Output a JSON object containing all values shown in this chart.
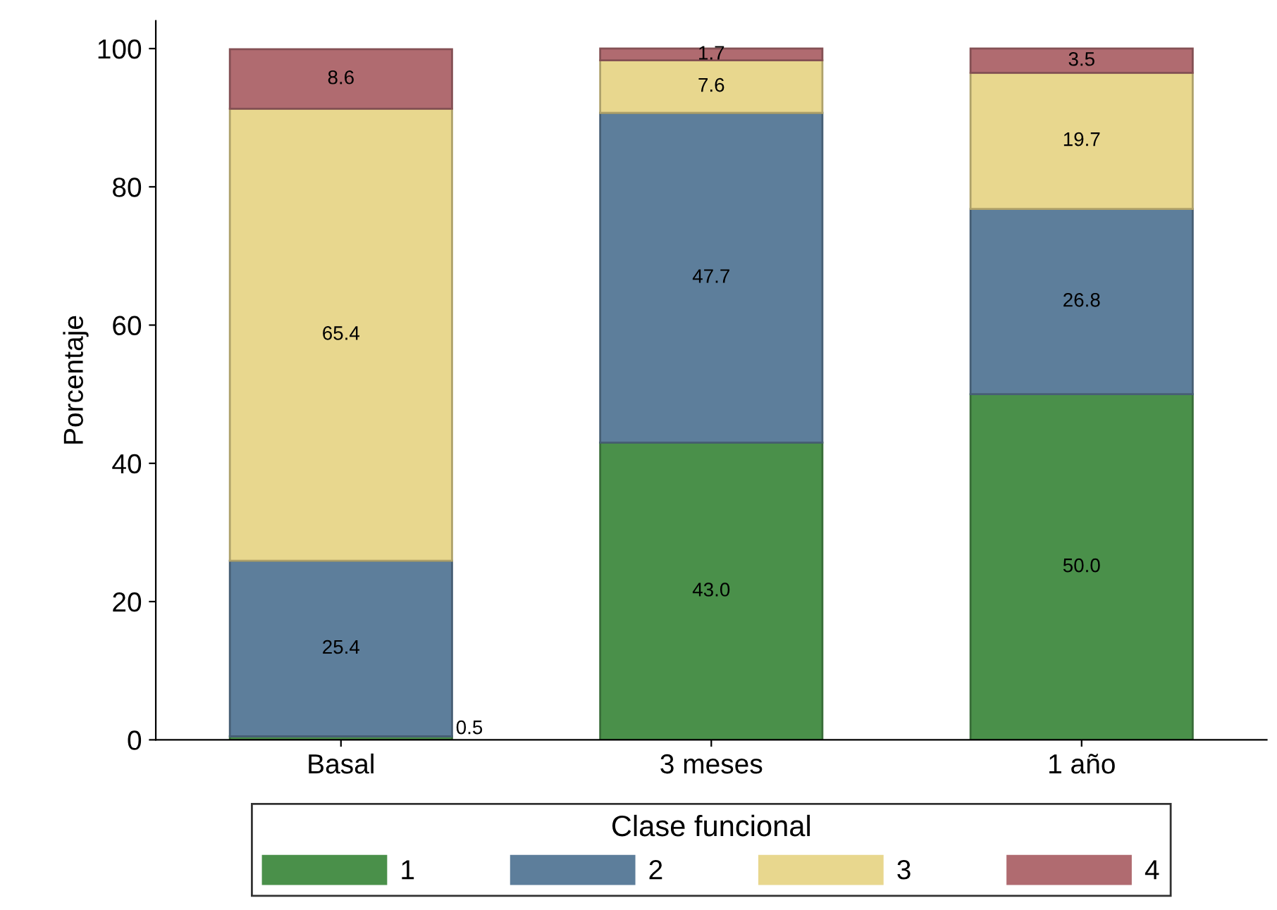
{
  "chart_data": {
    "type": "bar",
    "stacked": true,
    "ylabel": "Porcentaje",
    "legend_title": "Clase funcional",
    "legend": "bottom",
    "grid": false,
    "categories": [
      "Basal",
      "3 meses",
      "1 año"
    ],
    "ylim": [
      0,
      104
    ],
    "yticks": [
      0,
      20,
      40,
      60,
      80,
      100
    ],
    "series": [
      {
        "name": "1",
        "color": "#4a904a",
        "values": [
          0.5,
          43.0,
          50.0
        ],
        "value_labels": [
          "0.5",
          "43.0",
          "50.0"
        ]
      },
      {
        "name": "2",
        "color": "#5d7e9b",
        "values": [
          25.4,
          47.7,
          26.8
        ],
        "value_labels": [
          "25.4",
          "47.7",
          "26.8"
        ]
      },
      {
        "name": "3",
        "color": "#e8d78e",
        "values": [
          65.4,
          7.6,
          19.7
        ],
        "value_labels": [
          "65.4",
          "7.6",
          "19.7"
        ]
      },
      {
        "name": "4",
        "color": "#b06b70",
        "values": [
          8.6,
          1.7,
          3.5
        ],
        "value_labels": [
          "8.6",
          "1.7",
          "3.5"
        ]
      }
    ]
  }
}
